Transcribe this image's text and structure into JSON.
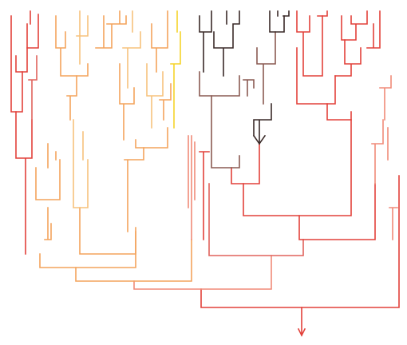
{
  "palette": {
    "red": "#e2413a",
    "salmon": "#f08a78",
    "orange": "#f4a35c",
    "light_orange": "#f7c27c",
    "yellow": "#f5d32a",
    "dark": "#3a2a28",
    "brown": "#8a5a52",
    "rose": "#e0625c"
  },
  "diagram": {
    "type": "dendrogram",
    "orientation": "root-bottom",
    "root_color": "red"
  }
}
